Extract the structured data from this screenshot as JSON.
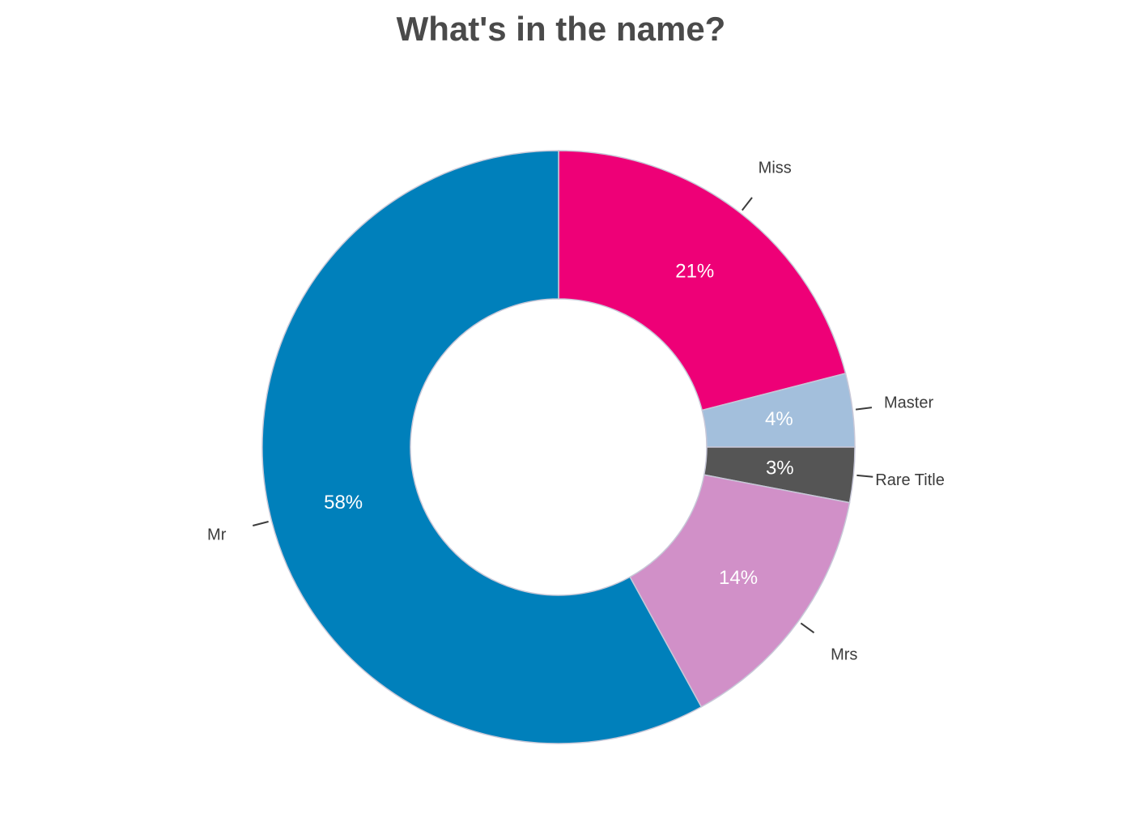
{
  "chart_data": {
    "type": "pie",
    "subtype": "donut",
    "title": "What's in the name?",
    "categories": [
      "Miss",
      "Master",
      "Rare Title",
      "Mrs",
      "Mr"
    ],
    "values": [
      21,
      4,
      3,
      14,
      58
    ],
    "value_labels": [
      "21%",
      "4%",
      "3%",
      "14%",
      "58%"
    ],
    "colors": [
      "#ee0077",
      "#a3bfdc",
      "#555555",
      "#d190c8",
      "#0080bb"
    ],
    "start_angle_deg": 90,
    "direction": "clockwise"
  }
}
